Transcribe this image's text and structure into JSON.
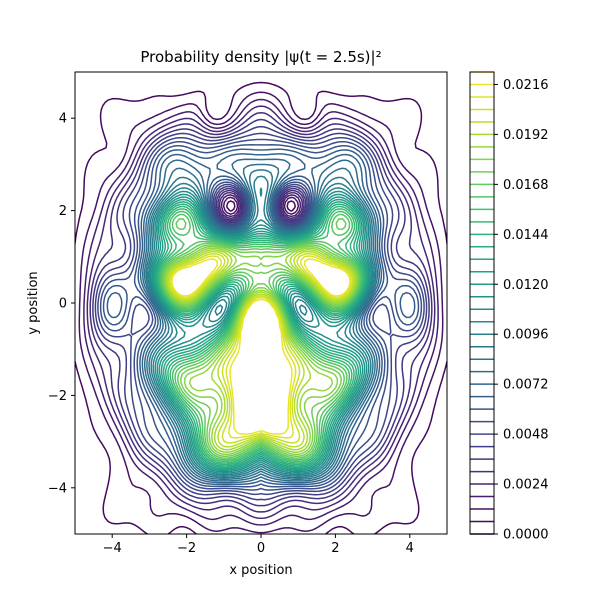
{
  "chart_data": {
    "type": "contour",
    "title": "Probability density |ψ(t = 2.5s)|²",
    "xlabel": "x position",
    "ylabel": "y position",
    "xlim": [
      -5,
      5
    ],
    "ylim": [
      -5,
      5
    ],
    "x_ticks": [
      -4,
      -2,
      0,
      2,
      4
    ],
    "x_tick_labels": [
      "−4",
      "−2",
      "0",
      "2",
      "4"
    ],
    "y_ticks": [
      -4,
      -2,
      0,
      2,
      4
    ],
    "y_tick_labels": [
      "−4",
      "−2",
      "0",
      "2",
      "4"
    ],
    "colormap": "viridis",
    "colorbar": {
      "min": 0.0,
      "max": 0.0222,
      "level_step": 0.0006,
      "tick_values": [
        0.0,
        0.0024,
        0.0048,
        0.0072,
        0.0096,
        0.012,
        0.0144,
        0.0168,
        0.0192,
        0.0216
      ],
      "tick_labels": [
        "0.0000",
        "0.0024",
        "0.0048",
        "0.0072",
        "0.0096",
        "0.0120",
        "0.0144",
        "0.0168",
        "0.0192",
        "0.0216"
      ]
    },
    "features": [
      {
        "kind": "peak",
        "x": 0.0,
        "y": -1.8,
        "value": 0.022
      },
      {
        "kind": "peak",
        "x": 0.0,
        "y": 1.0,
        "value": 0.016
      },
      {
        "kind": "peak",
        "x": -2.2,
        "y": 0.5,
        "value": 0.018
      },
      {
        "kind": "peak",
        "x": 2.2,
        "y": 0.5,
        "value": 0.018
      },
      {
        "kind": "minimum",
        "x": -0.8,
        "y": 2.1,
        "value": 0.0
      },
      {
        "kind": "minimum",
        "x": 0.8,
        "y": 2.1,
        "value": 0.0
      },
      {
        "kind": "minimum",
        "x": -1.2,
        "y": 4.2,
        "value": 0.0
      },
      {
        "kind": "minimum",
        "x": 1.2,
        "y": 4.2,
        "value": 0.0
      }
    ]
  },
  "colors": {
    "viridis": [
      "#440154",
      "#482878",
      "#3e4989",
      "#31688e",
      "#26828e",
      "#1f9e89",
      "#35b779",
      "#6ece58",
      "#b5de2b",
      "#fde725"
    ]
  }
}
